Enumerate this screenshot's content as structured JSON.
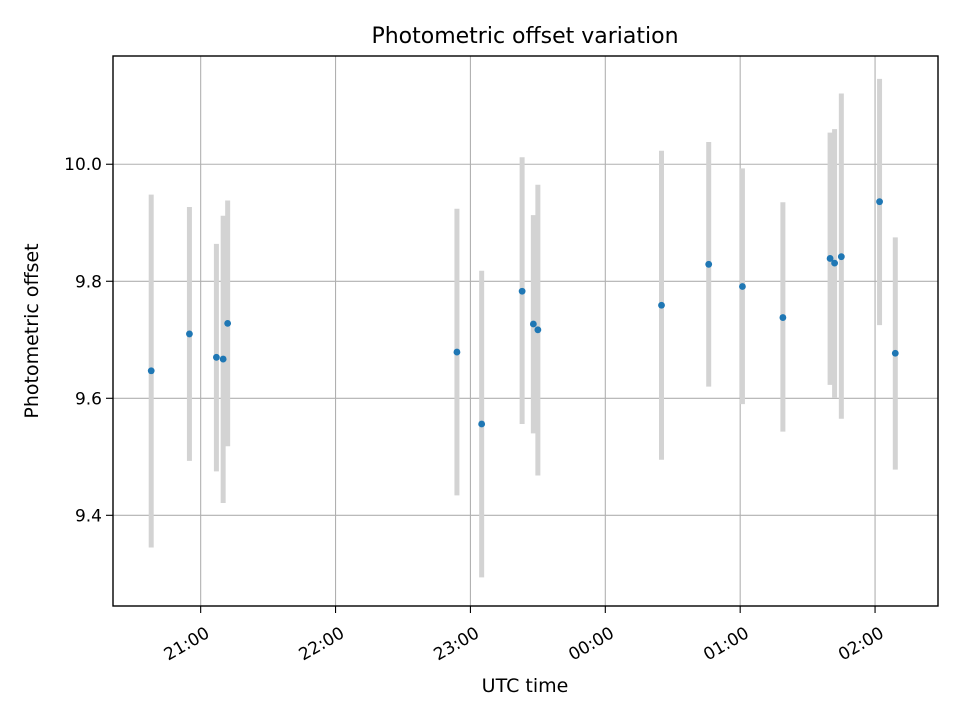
{
  "chart_data": {
    "type": "scatter",
    "title": "Photometric offset variation",
    "xlabel": "UTC time",
    "ylabel": "Photometric offset",
    "x_axis_type": "time",
    "xlim": [
      "20:21",
      "02:28"
    ],
    "ylim": [
      9.245,
      10.185
    ],
    "grid": true,
    "x_ticks": [
      {
        "t": "21:00",
        "label": "21:00"
      },
      {
        "t": "22:00",
        "label": "22:00"
      },
      {
        "t": "23:00",
        "label": "23:00"
      },
      {
        "t": "00:00",
        "label": "00:00"
      },
      {
        "t": "01:00",
        "label": "01:00"
      },
      {
        "t": "02:00",
        "label": "02:00"
      }
    ],
    "y_ticks": [
      9.4,
      9.6,
      9.8,
      10.0
    ],
    "y_tick_labels": [
      "9.4",
      "9.6",
      "9.8",
      "10.0"
    ],
    "series": [
      {
        "marker_color": "#1f77b4",
        "errorbar_color": "#d3d3d3",
        "points": [
          {
            "t": "20:38",
            "y": 9.647,
            "lo": 9.345,
            "hi": 9.948
          },
          {
            "t": "20:55",
            "y": 9.71,
            "lo": 9.493,
            "hi": 9.927
          },
          {
            "t": "21:07",
            "y": 9.67,
            "lo": 9.475,
            "hi": 9.864
          },
          {
            "t": "21:10",
            "y": 9.667,
            "lo": 9.421,
            "hi": 9.912
          },
          {
            "t": "21:12",
            "y": 9.728,
            "lo": 9.518,
            "hi": 9.938
          },
          {
            "t": "22:54",
            "y": 9.679,
            "lo": 9.434,
            "hi": 9.924
          },
          {
            "t": "23:05",
            "y": 9.556,
            "lo": 9.294,
            "hi": 9.818
          },
          {
            "t": "23:23",
            "y": 9.783,
            "lo": 9.556,
            "hi": 10.012
          },
          {
            "t": "23:28",
            "y": 9.727,
            "lo": 9.54,
            "hi": 9.913
          },
          {
            "t": "23:30",
            "y": 9.717,
            "lo": 9.468,
            "hi": 9.965
          },
          {
            "t": "00:25",
            "y": 9.759,
            "lo": 9.495,
            "hi": 10.023
          },
          {
            "t": "00:46",
            "y": 9.829,
            "lo": 9.62,
            "hi": 10.038
          },
          {
            "t": "01:01",
            "y": 9.791,
            "lo": 9.59,
            "hi": 9.993
          },
          {
            "t": "01:19",
            "y": 9.738,
            "lo": 9.543,
            "hi": 9.935
          },
          {
            "t": "01:40",
            "y": 9.839,
            "lo": 9.623,
            "hi": 10.054
          },
          {
            "t": "01:42",
            "y": 9.831,
            "lo": 9.601,
            "hi": 10.06
          },
          {
            "t": "01:45",
            "y": 9.842,
            "lo": 9.565,
            "hi": 10.121
          },
          {
            "t": "02:02",
            "y": 9.936,
            "lo": 9.725,
            "hi": 10.146
          },
          {
            "t": "02:09",
            "y": 9.677,
            "lo": 9.478,
            "hi": 9.875
          }
        ]
      }
    ]
  }
}
